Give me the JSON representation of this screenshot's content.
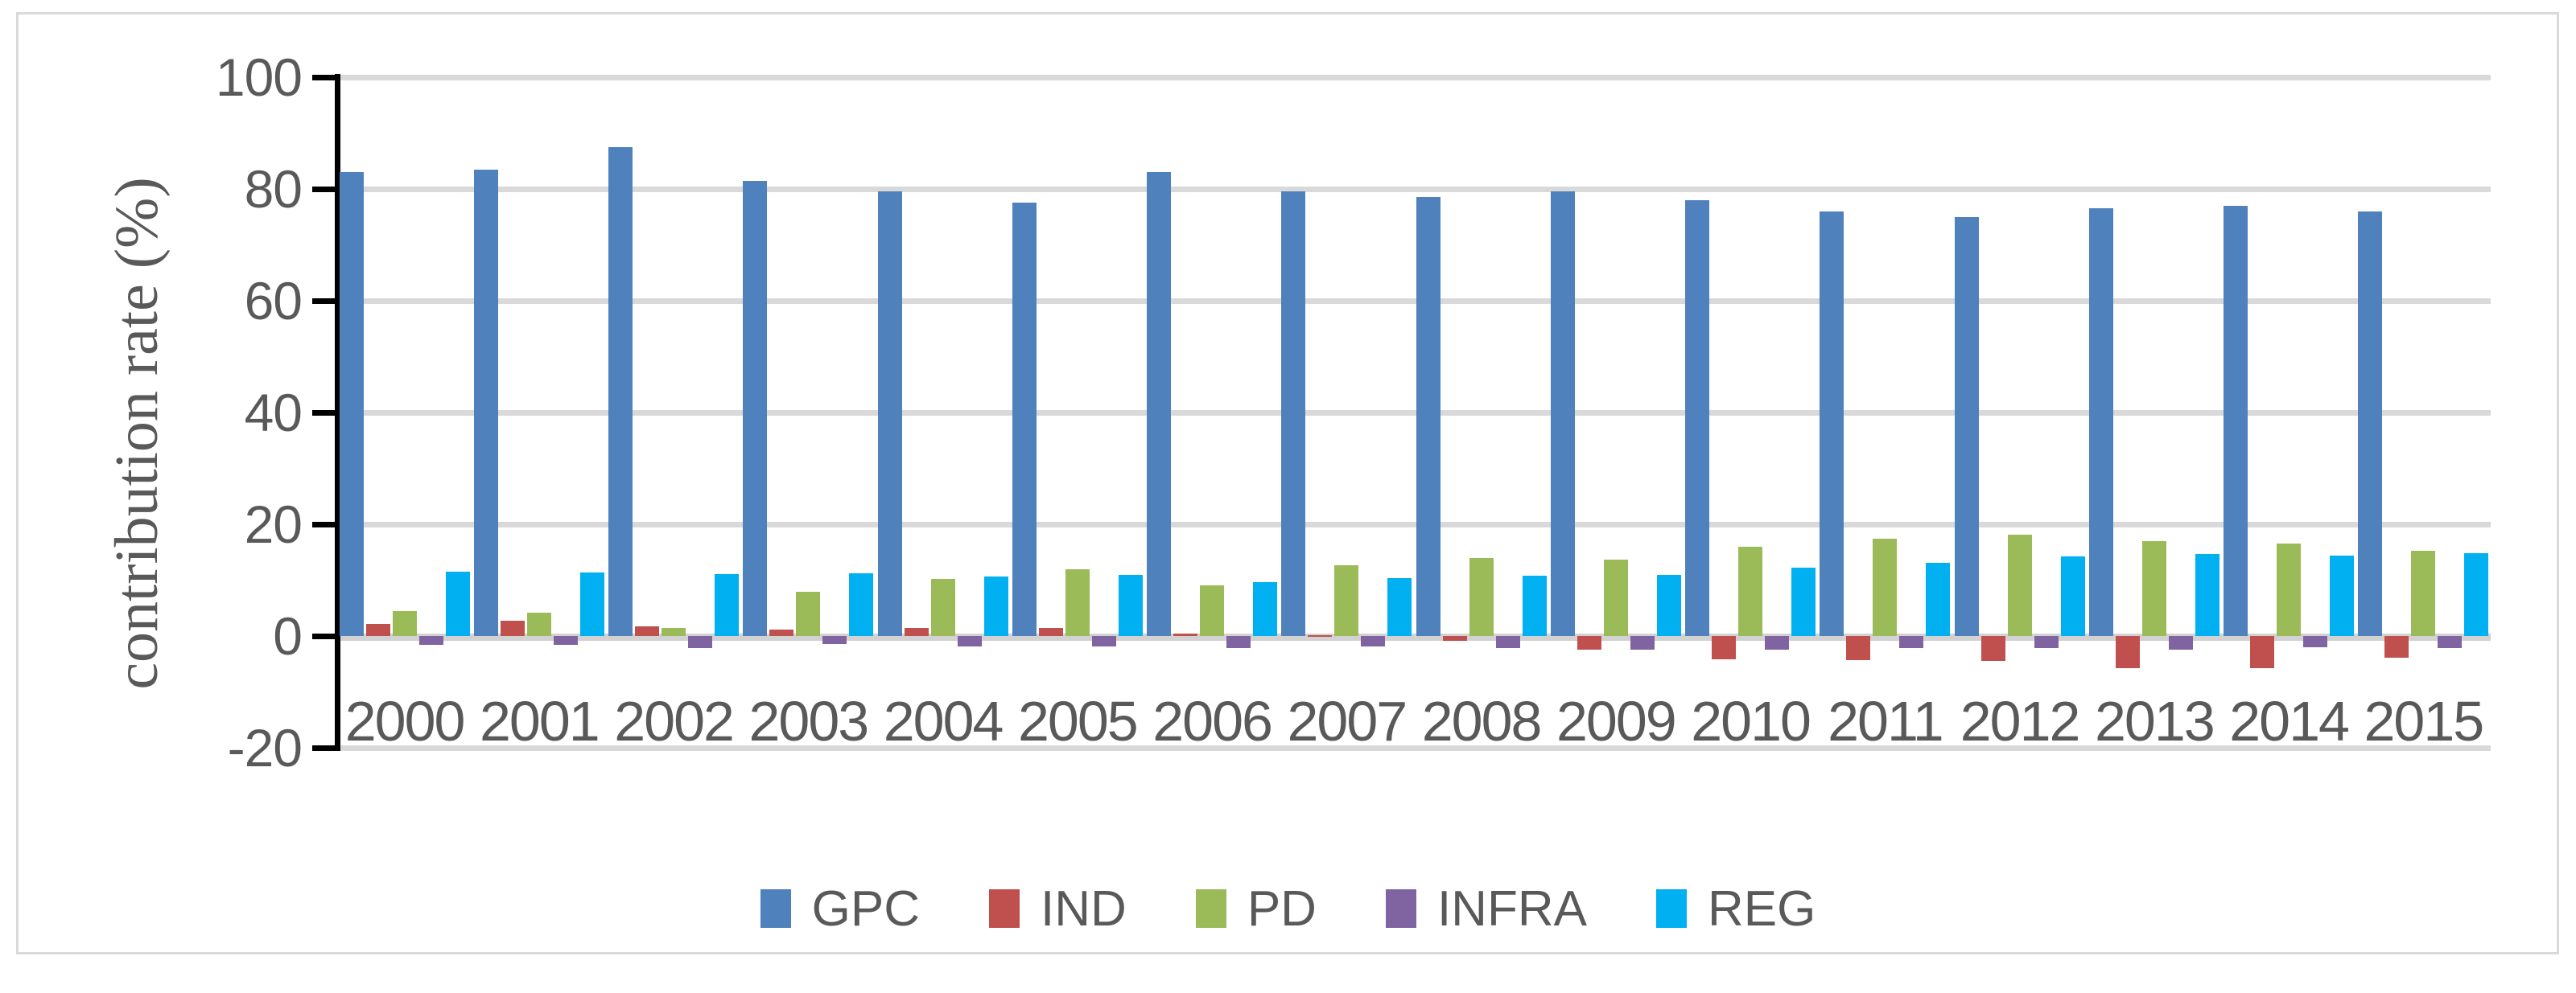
{
  "figure": {
    "background": "#FFFFFF",
    "border_color": "#D9D9D9",
    "text_color": "#595959",
    "gridline_color": "#D9D9D9",
    "axis_color": "#000000"
  },
  "chart_data": {
    "type": "bar",
    "title": "",
    "xlabel": "",
    "ylabel": "contribution rate (%)",
    "ylim": [
      -20,
      100
    ],
    "yticks": [
      100,
      80,
      60,
      40,
      20,
      0,
      -20
    ],
    "grid": true,
    "legend_position": "bottom-center",
    "categories": [
      "2000",
      "2001",
      "2002",
      "2003",
      "2004",
      "2005",
      "2006",
      "2007",
      "2008",
      "2009",
      "2010",
      "2011",
      "2012",
      "2013",
      "2014",
      "2015"
    ],
    "series": [
      {
        "name": "GPC",
        "color": "#4F81BD",
        "values": [
          83,
          83.5,
          87.5,
          81.5,
          79.5,
          77.5,
          83,
          79.5,
          78.5,
          79.5,
          78,
          76,
          75,
          76.5,
          77,
          76
        ]
      },
      {
        "name": "IND",
        "color": "#C0504D",
        "values": [
          2.2,
          2.7,
          1.7,
          1.1,
          1.4,
          1.5,
          0.5,
          0.1,
          -0.9,
          -2.4,
          -4.2,
          -4.3,
          -4.5,
          -5.8,
          -5.7,
          -3.9
        ]
      },
      {
        "name": "PD",
        "color": "#9BBB59",
        "values": [
          4.5,
          4.2,
          1.4,
          7.9,
          10.2,
          11.9,
          9.1,
          12.7,
          13.9,
          13.6,
          15.9,
          17.4,
          18.1,
          17.0,
          16.6,
          15.2
        ]
      },
      {
        "name": "INFRA",
        "color": "#8064A2",
        "values": [
          -1.6,
          -1.6,
          -2.2,
          -1.5,
          -1.9,
          -1.9,
          -2.2,
          -1.9,
          -2.2,
          -2.4,
          -2.4,
          -2.2,
          -2.2,
          -2.5,
          -2.0,
          -2.2
        ]
      },
      {
        "name": "REG",
        "color": "#00B0F0",
        "values": [
          11.5,
          11.3,
          11.1,
          11.2,
          10.6,
          11.0,
          9.6,
          10.3,
          10.8,
          11.0,
          12.3,
          13.1,
          14.2,
          14.7,
          14.4,
          14.8
        ]
      }
    ]
  }
}
